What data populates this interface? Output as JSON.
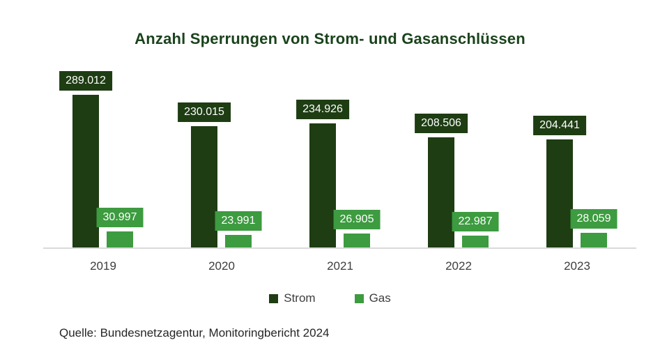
{
  "chart_data": {
    "type": "bar",
    "title": "Anzahl Sperrungen von Strom- und Gasanschlüssen",
    "categories": [
      "2019",
      "2020",
      "2021",
      "2022",
      "2023"
    ],
    "series": [
      {
        "name": "Strom",
        "color": "#1e3d13",
        "values": [
          289012,
          230015,
          234926,
          208506,
          204441
        ]
      },
      {
        "name": "Gas",
        "color": "#3d9b40",
        "values": [
          30997,
          23991,
          26905,
          22987,
          28059
        ]
      }
    ],
    "value_labels": true,
    "value_label_format": "thousands-dot",
    "legend_position": "bottom",
    "grid": false,
    "xlabel": "",
    "ylabel": "",
    "ylim": [
      0,
      289012
    ]
  },
  "source": "Quelle: Bundesnetzagentur, Monitoringbericht 2024",
  "colors": {
    "title_text": "#1a431c",
    "axis_line": "#d9d9d9",
    "tick_label_text": "#3d3d3d",
    "legend_text": "#3d3d3d",
    "source_text": "#262626",
    "bar_label_text": "#ffffff",
    "background": "#ffffff"
  }
}
